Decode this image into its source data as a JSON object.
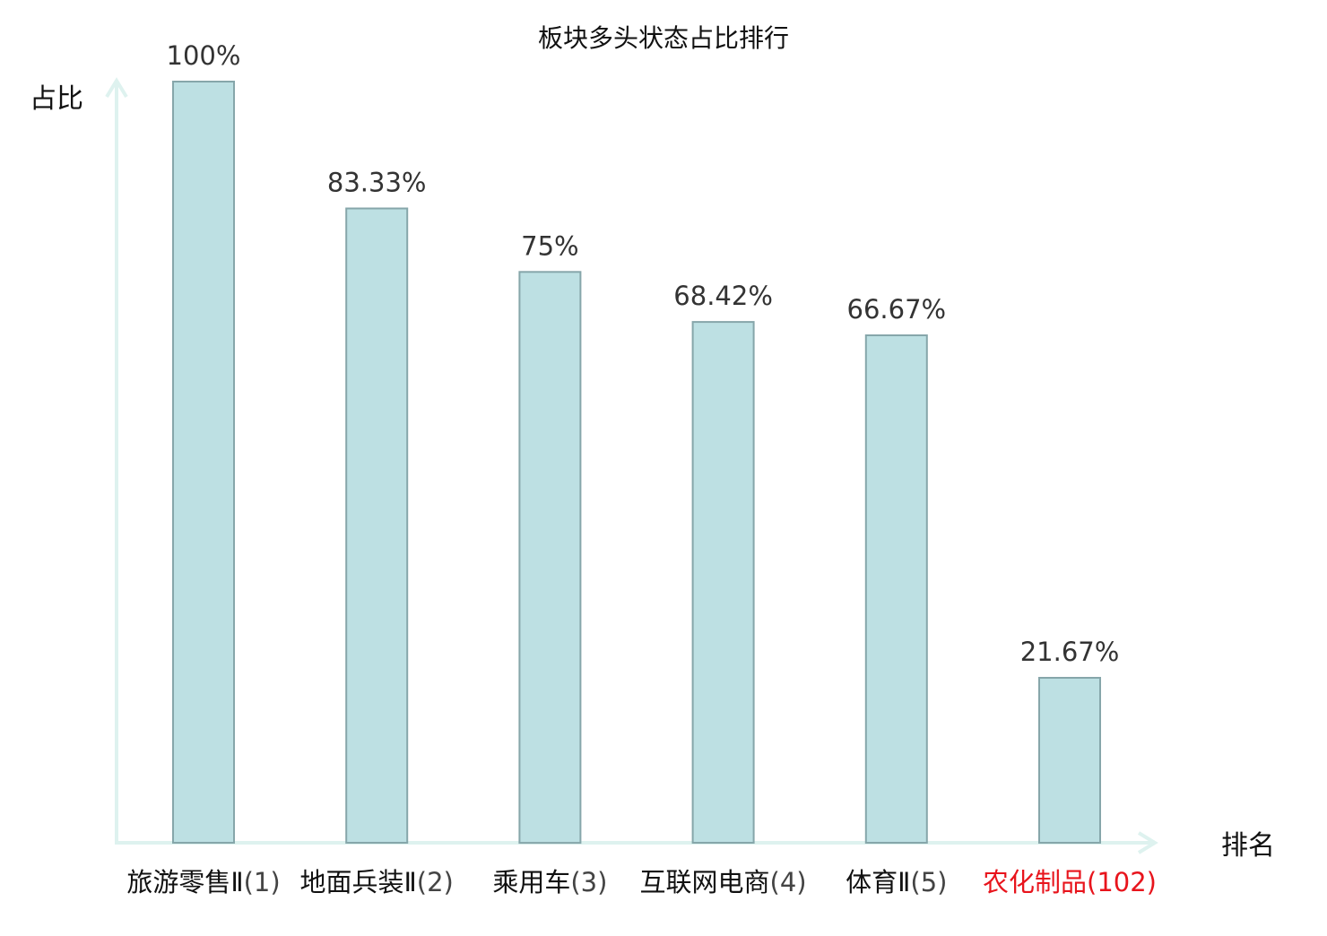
{
  "chart_data": {
    "type": "bar",
    "title": "板块多头状态占比排行",
    "ylabel": "占比",
    "xlabel": "排名",
    "ylim": [
      0,
      100
    ],
    "grid": false,
    "categories": [
      {
        "name": "旅游零售Ⅱ",
        "rank": "(1)",
        "highlight": false
      },
      {
        "name": "地面兵装Ⅱ",
        "rank": "(2)",
        "highlight": false
      },
      {
        "name": "乘用车",
        "rank": "(3)",
        "highlight": false
      },
      {
        "name": "互联网电商",
        "rank": "(4)",
        "highlight": false
      },
      {
        "name": "体育Ⅱ",
        "rank": "(5)",
        "highlight": false
      },
      {
        "name": "农化制品",
        "rank": "(102)",
        "highlight": true
      }
    ],
    "values": [
      100,
      83.33,
      75,
      68.42,
      66.67,
      21.67
    ],
    "value_labels": [
      "100%",
      "83.33%",
      "75%",
      "68.42%",
      "66.67%",
      "21.67%"
    ],
    "colors": {
      "bar_fill": "#bde0e3",
      "bar_stroke": "#86a6aa",
      "axis": "#def2ef",
      "highlight_text": "#e8141c",
      "tick_name": "#111111",
      "tick_rank": "#444444"
    }
  }
}
